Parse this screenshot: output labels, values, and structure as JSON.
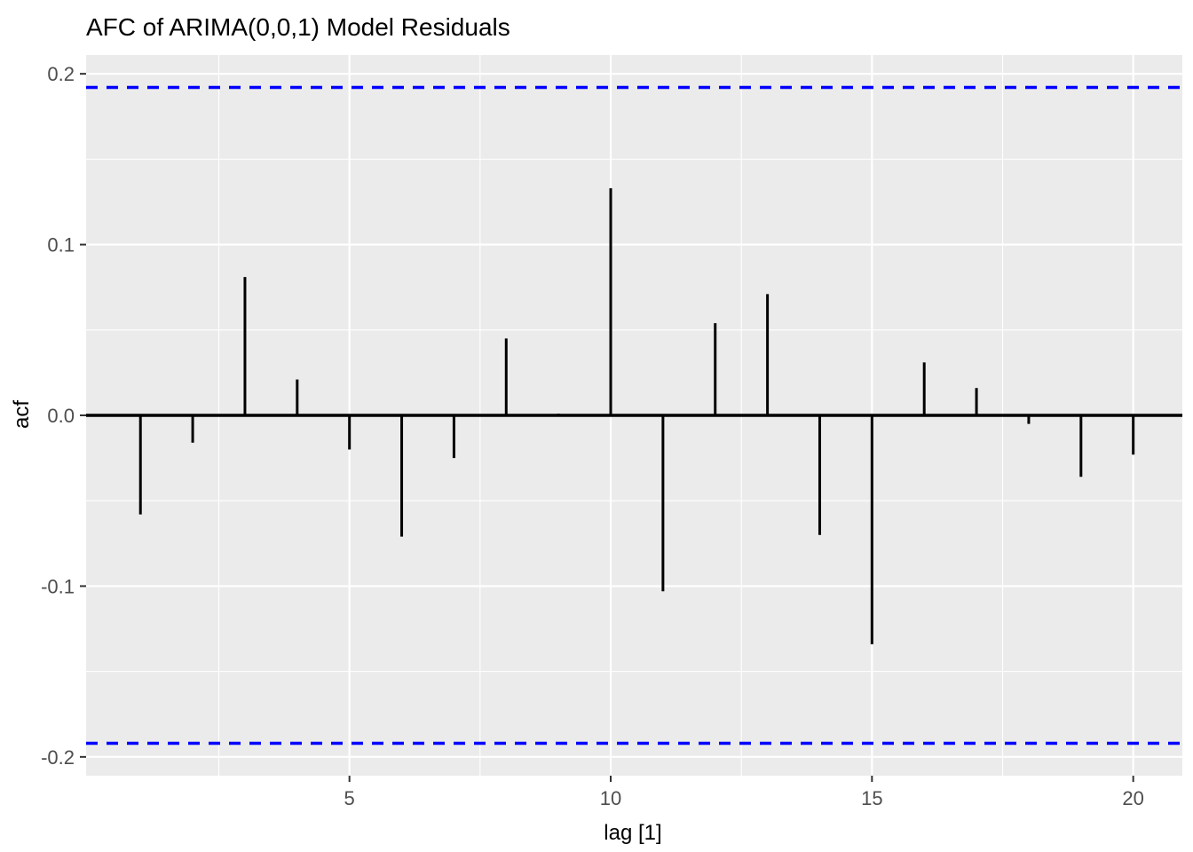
{
  "chart_data": {
    "type": "bar",
    "style": "stem-acf",
    "title": "AFC of ARIMA(0,0,1) Model Residuals",
    "xlabel": "lag [1]",
    "ylabel": "acf",
    "x": [
      1,
      2,
      3,
      4,
      5,
      6,
      7,
      8,
      9,
      10,
      11,
      12,
      13,
      14,
      15,
      16,
      17,
      18,
      19,
      20
    ],
    "values": [
      -0.058,
      -0.016,
      0.081,
      0.021,
      -0.02,
      -0.071,
      -0.025,
      0.045,
      0.001,
      0.133,
      -0.103,
      0.054,
      0.071,
      -0.07,
      -0.134,
      0.031,
      0.016,
      -0.005,
      -0.036,
      -0.023
    ],
    "confidence_upper": 0.192,
    "confidence_lower": -0.192,
    "xlim": [
      -0.04,
      20.94
    ],
    "ylim": [
      -0.211,
      0.211
    ],
    "x_major_ticks": [
      5,
      10,
      15,
      20
    ],
    "x_major_tick_labels": [
      "5",
      "10",
      "15",
      "20"
    ],
    "x_minor_ticks": [
      2.5,
      7.5,
      12.5,
      17.5
    ],
    "y_major_ticks": [
      0.2,
      0.1,
      0.0,
      -0.1,
      -0.2
    ],
    "y_major_tick_labels": [
      "0.2",
      "0.1",
      "0.0",
      "-0.1",
      "-0.2"
    ],
    "y_minor_ticks": [
      0.15,
      0.05,
      -0.05,
      -0.15
    ],
    "grid": true,
    "legend": "none",
    "colors": {
      "panel_background": "#EBEBEB",
      "grid_major": "#FFFFFF",
      "grid_minor": "#FFFFFF",
      "stem": "#000000",
      "zero_line": "#000000",
      "confidence_line": "#0000FF",
      "tick_mark": "#333333",
      "tick_label": "#4D4D4D",
      "title_text": "#000000",
      "outer_background": "#FFFFFF"
    }
  }
}
